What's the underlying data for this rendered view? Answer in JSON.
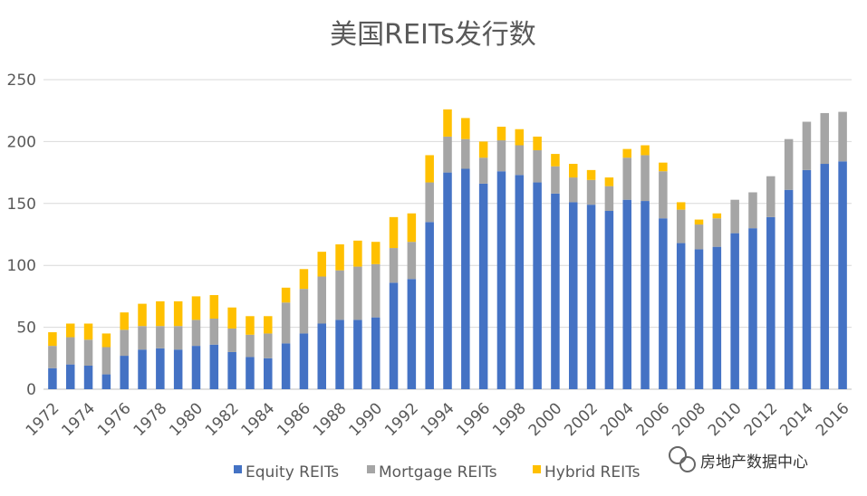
{
  "chart_data": {
    "type": "bar",
    "stacked": true,
    "title": "美国REITs发行数",
    "xlabel": "",
    "ylabel": "",
    "ylim": [
      0,
      250
    ],
    "yticks": [
      0,
      50,
      100,
      150,
      200,
      250
    ],
    "grid": true,
    "legend_position": "bottom",
    "categories": [
      1972,
      1973,
      1974,
      1975,
      1976,
      1977,
      1978,
      1979,
      1980,
      1981,
      1982,
      1983,
      1984,
      1985,
      1986,
      1987,
      1988,
      1989,
      1990,
      1991,
      1992,
      1993,
      1994,
      1995,
      1996,
      1997,
      1998,
      1999,
      2000,
      2001,
      2002,
      2003,
      2004,
      2005,
      2006,
      2007,
      2008,
      2009,
      2010,
      2011,
      2012,
      2013,
      2014,
      2015,
      2016
    ],
    "tick_labels": [
      "1972",
      "1974",
      "1976",
      "1978",
      "1980",
      "1982",
      "1984",
      "1986",
      "1988",
      "1990",
      "1992",
      "1994",
      "1996",
      "1998",
      "2000",
      "2002",
      "2004",
      "2006",
      "2008",
      "2010",
      "2012",
      "2014",
      "2016"
    ],
    "series": [
      {
        "name": "Equity REITs",
        "color": "#4472C4",
        "values": [
          17,
          20,
          19,
          12,
          27,
          32,
          33,
          32,
          35,
          36,
          30,
          26,
          25,
          37,
          45,
          53,
          56,
          56,
          58,
          86,
          89,
          135,
          175,
          178,
          166,
          176,
          173,
          167,
          158,
          151,
          149,
          144,
          153,
          152,
          138,
          118,
          113,
          115,
          126,
          130,
          139,
          161,
          177,
          182,
          184
        ]
      },
      {
        "name": "Mortgage REITs",
        "color": "#A5A5A5",
        "values": [
          18,
          22,
          21,
          22,
          21,
          19,
          18,
          19,
          21,
          21,
          19,
          18,
          20,
          33,
          36,
          38,
          40,
          43,
          43,
          28,
          30,
          32,
          29,
          24,
          21,
          25,
          24,
          26,
          22,
          20,
          20,
          20,
          34,
          37,
          38,
          27,
          20,
          23,
          27,
          29,
          33,
          41,
          39,
          41,
          40
        ]
      },
      {
        "name": "Hybrid REITs",
        "color": "#FFC000",
        "values": [
          11,
          11,
          13,
          11,
          14,
          18,
          20,
          20,
          19,
          19,
          17,
          15,
          14,
          12,
          16,
          20,
          21,
          21,
          18,
          25,
          23,
          22,
          22,
          17,
          13,
          11,
          13,
          11,
          10,
          11,
          8,
          7,
          7,
          8,
          7,
          6,
          4,
          4,
          0,
          0,
          0,
          0,
          0,
          0,
          0
        ]
      }
    ]
  },
  "watermark": {
    "text": "房地产数据中心",
    "icon": "wechat-icon"
  }
}
